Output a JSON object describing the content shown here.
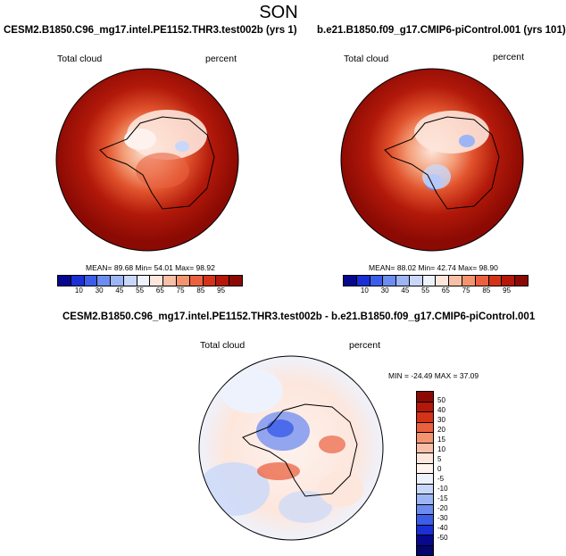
{
  "title": "SON",
  "panel1": {
    "title": "CESM2.B1850.C96_mg17.intel.PE1152.THR3.test002b (yrs 1)",
    "left_label": "Total cloud",
    "right_label": "percent",
    "stats": "MEAN= 89.68  Min= 54.01  Max= 98.92"
  },
  "panel2": {
    "title": "b.e21.B1850.f09_g17.CMIP6-piControl.001 (yrs 101)",
    "left_label": "Total cloud",
    "right_label": "percent",
    "stats": "MEAN= 88.02  Min= 42.74  Max= 98.90"
  },
  "panel3": {
    "title": "CESM2.B1850.C96_mg17.intel.PE1152.THR3.test002b - b.e21.B1850.f09_g17.CMIP6-piControl.001",
    "left_label": "Total cloud",
    "right_label": "percent",
    "stats": "MIN = -24.49  MAX = 37.09"
  },
  "colorbar_top": {
    "ticks": [
      "10",
      "30",
      "45",
      "55",
      "65",
      "75",
      "85",
      "95"
    ],
    "colors": [
      "#08088f",
      "#1a2fd6",
      "#3b5de8",
      "#6d8cf0",
      "#9db5f5",
      "#c9d8fa",
      "#eef2fd",
      "#fde6dc",
      "#f9bfa6",
      "#f4946f",
      "#ea6140",
      "#d43318",
      "#b51708",
      "#8b0a03"
    ]
  },
  "colorbar_diff": {
    "ticks": [
      "50",
      "40",
      "30",
      "20",
      "15",
      "10",
      "5",
      "0",
      "-5",
      "-10",
      "-15",
      "-20",
      "-30",
      "-40",
      "-50"
    ],
    "colors": [
      "#8b0a03",
      "#b51708",
      "#d43318",
      "#ea6140",
      "#f4946f",
      "#f9bfa6",
      "#fde6dc",
      "#fff4ee",
      "#eef2fd",
      "#c9d8fa",
      "#9db5f5",
      "#6d8cf0",
      "#3b5de8",
      "#1a2fd6",
      "#08088f",
      "#050570"
    ]
  }
}
